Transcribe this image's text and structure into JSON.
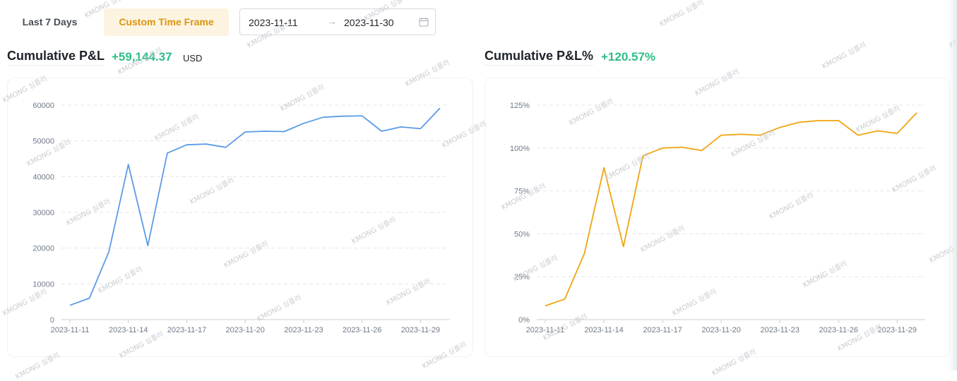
{
  "filters": {
    "last7_label": "Last 7 Days",
    "custom_label": "Custom Time Frame",
    "start_date": "2023-11-11",
    "end_date": "2023-11-30",
    "arrow": "→"
  },
  "pnl": {
    "title": "Cumulative P&L",
    "value": "+59,144.37",
    "unit": "USD"
  },
  "pnl_pct": {
    "title": "Cumulative P&L%",
    "value": "+120.57%"
  },
  "watermark": "KMONG 심플러",
  "colors": {
    "positive": "#2ebd85",
    "pnl_line": "#5b9be6",
    "pct_line": "#f0a50f",
    "active_tab_bg": "#fdf3e1",
    "active_tab_text": "#d9960f"
  },
  "chart_data": [
    {
      "type": "line",
      "title": "Cumulative P&L",
      "x": [
        "2023-11-11",
        "2023-11-12",
        "2023-11-13",
        "2023-11-14",
        "2023-11-15",
        "2023-11-16",
        "2023-11-17",
        "2023-11-18",
        "2023-11-19",
        "2023-11-20",
        "2023-11-21",
        "2023-11-22",
        "2023-11-23",
        "2023-11-24",
        "2023-11-25",
        "2023-11-26",
        "2023-11-27",
        "2023-11-28",
        "2023-11-29",
        "2023-11-30"
      ],
      "x_tick_labels": [
        "2023-11-11",
        "2023-11-14",
        "2023-11-17",
        "2023-11-20",
        "2023-11-23",
        "2023-11-26",
        "2023-11-29"
      ],
      "series": [
        {
          "values": [
            4000,
            6000,
            19000,
            43400,
            20700,
            46600,
            48900,
            49100,
            48200,
            52500,
            52700,
            52600,
            54900,
            56600,
            56900,
            57000,
            52700,
            53900,
            53400,
            59144.37
          ]
        }
      ],
      "ylim": [
        0,
        60000
      ],
      "y_ticks": [
        "0",
        "10000",
        "20000",
        "30000",
        "40000",
        "50000",
        "60000"
      ],
      "grid": true
    },
    {
      "type": "line",
      "title": "Cumulative P&L%",
      "x": [
        "2023-11-11",
        "2023-11-12",
        "2023-11-13",
        "2023-11-14",
        "2023-11-15",
        "2023-11-16",
        "2023-11-17",
        "2023-11-18",
        "2023-11-19",
        "2023-11-20",
        "2023-11-21",
        "2023-11-22",
        "2023-11-23",
        "2023-11-24",
        "2023-11-25",
        "2023-11-26",
        "2023-11-27",
        "2023-11-28",
        "2023-11-29",
        "2023-11-30"
      ],
      "x_tick_labels": [
        "2023-11-11",
        "2023-11-14",
        "2023-11-17",
        "2023-11-20",
        "2023-11-23",
        "2023-11-26",
        "2023-11-29"
      ],
      "series": [
        {
          "values": [
            8,
            12,
            38.5,
            88.5,
            42.5,
            95.5,
            100,
            100.5,
            98.5,
            107.5,
            108,
            107.5,
            112,
            115,
            116,
            116,
            107.5,
            110,
            108.5,
            120.57
          ]
        }
      ],
      "ylim": [
        0,
        125
      ],
      "y_ticks": [
        "0%",
        "25%",
        "50%",
        "75%",
        "100%",
        "125%"
      ],
      "grid": true
    }
  ]
}
